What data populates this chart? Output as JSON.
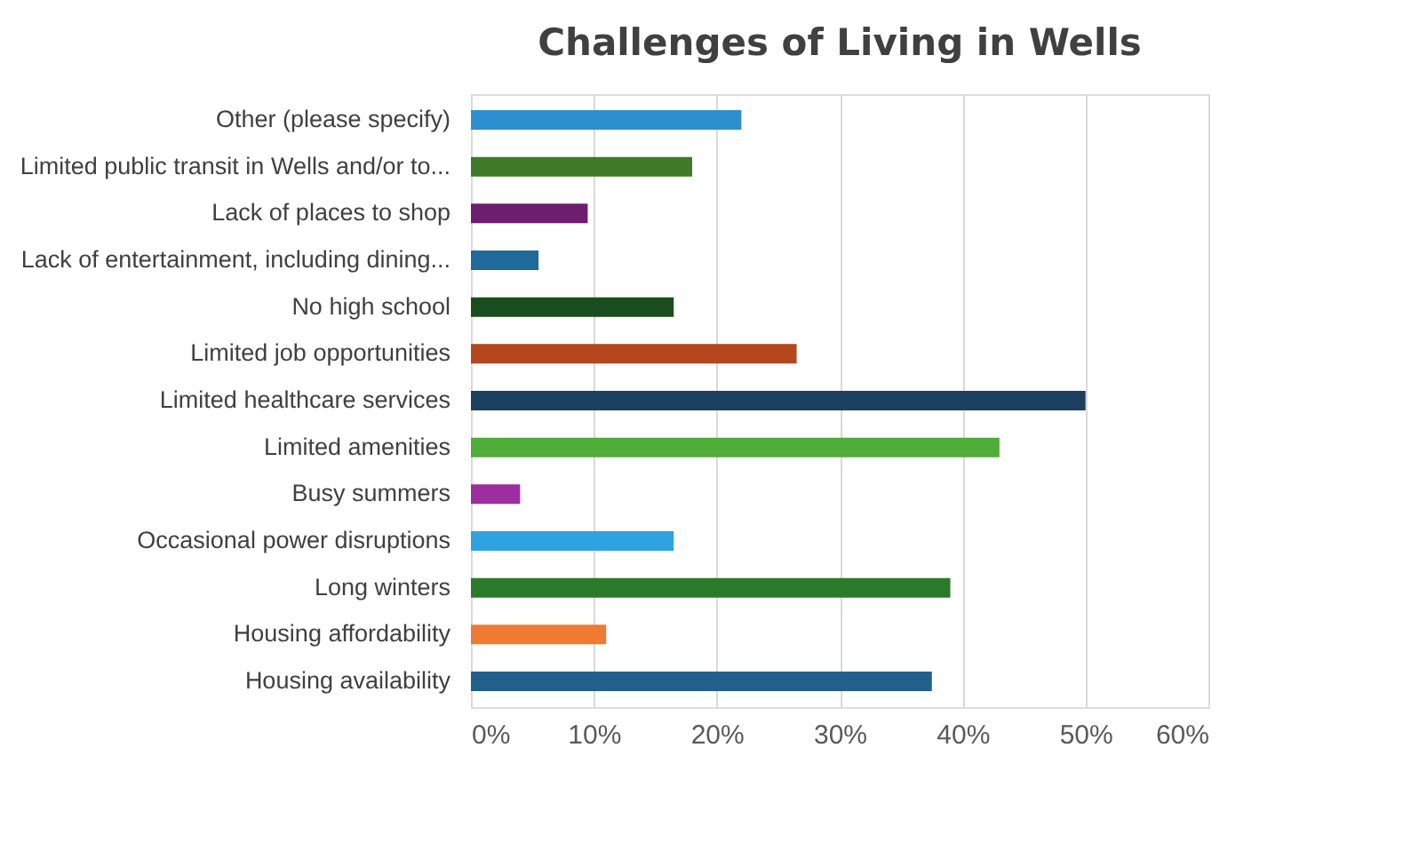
{
  "chart_data": {
    "type": "bar",
    "orientation": "horizontal",
    "title": "Challenges of Living in Wells",
    "categories": [
      "Other (please specify)",
      "Limited public transit in Wells and/or to...",
      "Lack of places to shop",
      "Lack of entertainment, including dining...",
      "No high school",
      "Limited job opportunities",
      "Limited healthcare services",
      "Limited amenities",
      "Busy summers",
      "Occasional power disruptions",
      "Long winters",
      "Housing affordability",
      "Housing availability"
    ],
    "values": [
      22,
      18,
      9.5,
      5.5,
      16.5,
      26.5,
      50,
      43,
      4,
      16.5,
      39,
      11,
      37.5
    ],
    "colors": [
      "#2e8fd0",
      "#3f7a26",
      "#6e1e6e",
      "#1f6a9a",
      "#1a4d1e",
      "#b5471f",
      "#1b3f5e",
      "#4fad3a",
      "#9b2f9f",
      "#2fa2e0",
      "#2b7a2b",
      "#ef7a33",
      "#215f8c"
    ],
    "xlim": [
      0,
      60
    ],
    "xticks": [
      {
        "value": 0,
        "label": "0%"
      },
      {
        "value": 10,
        "label": "10%"
      },
      {
        "value": 20,
        "label": "20%"
      },
      {
        "value": 30,
        "label": "30%"
      },
      {
        "value": 40,
        "label": "40%"
      },
      {
        "value": 50,
        "label": "50%"
      },
      {
        "value": 60,
        "label": "60%"
      }
    ],
    "grid": "x"
  }
}
